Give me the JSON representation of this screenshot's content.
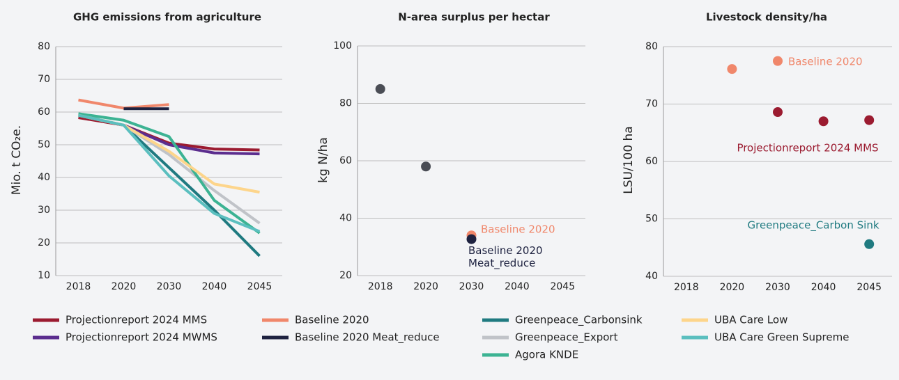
{
  "chart_data": [
    {
      "type": "line",
      "title": "GHG emissions from agriculture",
      "y_label": "Mio. t CO₂e.",
      "categories": [
        "2018",
        "2020",
        "2030",
        "2040",
        "2045"
      ],
      "ylim": [
        10,
        80
      ],
      "yticks": [
        10,
        20,
        30,
        40,
        50,
        60,
        70,
        80
      ],
      "grid": true,
      "series": [
        {
          "name": "Projectionreport 2024 MMS",
          "color": "#9b1b30",
          "values": [
            58.3,
            56,
            50.5,
            48.7,
            48.4
          ]
        },
        {
          "name": "Projectionreport 2024 MWMS",
          "color": "#5b2d8e",
          "values": [
            null,
            56,
            50,
            47.5,
            47.2
          ]
        },
        {
          "name": "Baseline 2020",
          "color": "#f0876b",
          "values": [
            63.7,
            61.2,
            62.3,
            null,
            null
          ]
        },
        {
          "name": "Baseline 2020 Meat_reduce",
          "color": "#1e2240",
          "values": [
            null,
            61,
            61,
            null,
            null
          ]
        },
        {
          "name": "Greenpeace_Carbonsink",
          "color": "#1f7a80",
          "values": [
            59,
            56,
            43,
            30,
            16
          ]
        },
        {
          "name": "Greenpeace_Export",
          "color": "#c0c3c8",
          "values": [
            59,
            56,
            47,
            36,
            26
          ]
        },
        {
          "name": "Agora KNDE",
          "color": "#3cb393",
          "values": [
            59.5,
            57.5,
            52.5,
            33,
            23
          ]
        },
        {
          "name": "UBA Care Low",
          "color": "#fdd58b",
          "values": [
            59,
            56,
            48,
            38,
            35.5
          ]
        },
        {
          "name": "UBA Care Green Supreme",
          "color": "#5bbfbf",
          "values": [
            59,
            56,
            40.5,
            29,
            23.5
          ]
        }
      ]
    },
    {
      "type": "scatter",
      "title": "N-area surplus per hectar",
      "y_label": "kg N/ha",
      "categories": [
        "2018",
        "2020",
        "2030",
        "2040",
        "2045"
      ],
      "ylim": [
        20,
        100
      ],
      "yticks": [
        20,
        40,
        60,
        80,
        100
      ],
      "grid": true,
      "series": [
        {
          "color": "#4a4d55",
          "values": [
            85,
            58,
            null,
            null,
            null
          ]
        },
        {
          "name": "Baseline 2020",
          "color": "#f0876b",
          "values": [
            null,
            null,
            34,
            null,
            null
          ]
        },
        {
          "name": "Baseline 2020 Meat_reduce",
          "color": "#1e2240",
          "values": [
            null,
            null,
            32.7,
            null,
            null
          ]
        }
      ]
    },
    {
      "type": "scatter",
      "title": "Livestock density/ha",
      "y_label": "LSU/100 ha",
      "categories": [
        "2018",
        "2020",
        "2030",
        "2040",
        "2045"
      ],
      "ylim": [
        40,
        80
      ],
      "yticks": [
        40,
        50,
        60,
        70,
        80
      ],
      "grid": true,
      "series": [
        {
          "name": "Baseline 2020",
          "color": "#f0876b",
          "values": [
            null,
            76.1,
            77.5,
            null,
            null
          ]
        },
        {
          "name": "Projectionreport 2024 MMS",
          "color": "#9b1b30",
          "values": [
            null,
            null,
            68.6,
            67,
            67.2
          ]
        },
        {
          "name": "Greenpeace_Carbon Sink",
          "color": "#1f7a80",
          "values": [
            null,
            null,
            null,
            null,
            45.6
          ]
        }
      ]
    }
  ]
}
